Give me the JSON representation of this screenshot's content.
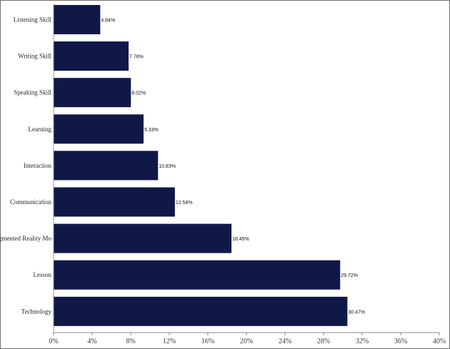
{
  "chart_data": {
    "type": "bar",
    "orientation": "horizontal",
    "categories": [
      "Listening Skill",
      "Writing Skill",
      "Speaking Skill",
      "Learning",
      "Interaction",
      "Communication",
      "Augmented Reality Mo",
      "Lesson",
      "Technology"
    ],
    "values": [
      4.84,
      7.78,
      8.02,
      9.33,
      10.83,
      12.58,
      18.45,
      29.72,
      30.47
    ],
    "value_labels": [
      "4.84%",
      "7.78%",
      "8.02%",
      "9.33%",
      "10.83%",
      "12.58%",
      "18.45%",
      "29.72%",
      "30.47%"
    ],
    "xlim": [
      0,
      40
    ],
    "x_ticks": [
      "0%",
      "4%",
      "8%",
      "12%",
      "16%",
      "20%",
      "24%",
      "28%",
      "32%",
      "36%",
      "40%"
    ],
    "x_tick_values": [
      0,
      4,
      8,
      12,
      16,
      20,
      24,
      28,
      32,
      36,
      40
    ],
    "bar_color": "#101848",
    "grid": false,
    "title": "",
    "xlabel": "",
    "ylabel": ""
  }
}
